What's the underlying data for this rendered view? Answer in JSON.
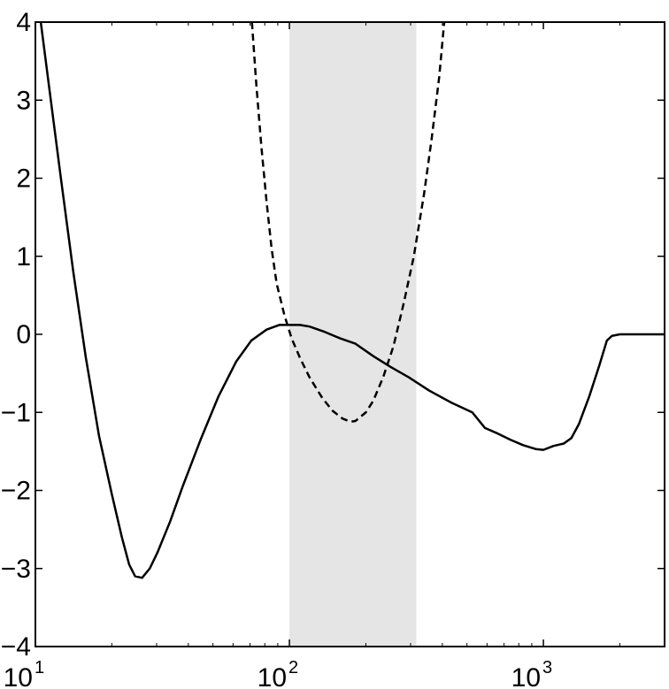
{
  "chart_data": {
    "type": "line",
    "title": "",
    "xlabel": "",
    "ylabel": "",
    "xscale": "log",
    "xlim": [
      10,
      3000
    ],
    "ylim": [
      -4,
      4
    ],
    "grid": false,
    "x_ticks": [
      {
        "value": 10,
        "base": "10",
        "exp": "1"
      },
      {
        "value": 100,
        "base": "10",
        "exp": "2"
      },
      {
        "value": 1000,
        "base": "10",
        "exp": "3"
      }
    ],
    "y_ticks": [
      {
        "value": 4,
        "label": "4"
      },
      {
        "value": 3,
        "label": "3"
      },
      {
        "value": 2,
        "label": "2"
      },
      {
        "value": 1,
        "label": "1"
      },
      {
        "value": 0,
        "label": "0"
      },
      {
        "value": -1,
        "label": "−1"
      },
      {
        "value": -2,
        "label": "−2"
      },
      {
        "value": -3,
        "label": "−3"
      },
      {
        "value": -4,
        "label": "−4"
      }
    ],
    "shaded_band": {
      "x": [
        100,
        316
      ],
      "color": "#e5e5e5"
    },
    "series": [
      {
        "style": "solid",
        "color": "#000000",
        "points": [
          [
            10.5,
            4.0
          ],
          [
            11.5,
            3.0
          ],
          [
            12.6,
            2.0
          ],
          [
            14.1,
            0.8
          ],
          [
            15.8,
            -0.3
          ],
          [
            17.8,
            -1.3
          ],
          [
            20.0,
            -2.05
          ],
          [
            21.9,
            -2.6
          ],
          [
            23.4,
            -2.95
          ],
          [
            24.7,
            -3.1
          ],
          [
            26.3,
            -3.12
          ],
          [
            28.2,
            -3.0
          ],
          [
            30.2,
            -2.8
          ],
          [
            33.9,
            -2.4
          ],
          [
            38.0,
            -1.95
          ],
          [
            44.7,
            -1.35
          ],
          [
            52.5,
            -0.8
          ],
          [
            61.7,
            -0.35
          ],
          [
            70.8,
            -0.08
          ],
          [
            81.3,
            0.06
          ],
          [
            91.2,
            0.12
          ],
          [
            100,
            0.12
          ],
          [
            110,
            0.12
          ],
          [
            120,
            0.1
          ],
          [
            138,
            0.03
          ],
          [
            158,
            -0.05
          ],
          [
            182,
            -0.12
          ],
          [
            214,
            -0.28
          ],
          [
            251,
            -0.42
          ],
          [
            295,
            -0.55
          ],
          [
            355,
            -0.72
          ],
          [
            437,
            -0.88
          ],
          [
            525,
            -1.0
          ],
          [
            589,
            -1.2
          ],
          [
            660,
            -1.27
          ],
          [
            741,
            -1.35
          ],
          [
            832,
            -1.42
          ],
          [
            933,
            -1.47
          ],
          [
            1000,
            -1.48
          ],
          [
            1096,
            -1.43
          ],
          [
            1202,
            -1.4
          ],
          [
            1288,
            -1.33
          ],
          [
            1380,
            -1.15
          ],
          [
            1514,
            -0.8
          ],
          [
            1660,
            -0.4
          ],
          [
            1778,
            -0.08
          ],
          [
            1862,
            -0.02
          ],
          [
            2000,
            0.0
          ],
          [
            2239,
            0.0
          ],
          [
            3000,
            0.0
          ]
        ]
      },
      {
        "style": "dashed",
        "color": "#000000",
        "points": [
          [
            71.2,
            4.0
          ],
          [
            74.1,
            3.2
          ],
          [
            77.6,
            2.4
          ],
          [
            81.3,
            1.7
          ],
          [
            85.1,
            1.1
          ],
          [
            89.1,
            0.65
          ],
          [
            95.5,
            0.25
          ],
          [
            102,
            -0.05
          ],
          [
            110,
            -0.3
          ],
          [
            120,
            -0.55
          ],
          [
            135,
            -0.82
          ],
          [
            148,
            -0.98
          ],
          [
            162,
            -1.08
          ],
          [
            174,
            -1.12
          ],
          [
            182,
            -1.11
          ],
          [
            200,
            -1.0
          ],
          [
            214,
            -0.85
          ],
          [
            234,
            -0.55
          ],
          [
            257,
            -0.15
          ],
          [
            282,
            0.4
          ],
          [
            309,
            1.0
          ],
          [
            339,
            1.8
          ],
          [
            363,
            2.5
          ],
          [
            389,
            3.3
          ],
          [
            407,
            4.0
          ]
        ]
      }
    ]
  }
}
